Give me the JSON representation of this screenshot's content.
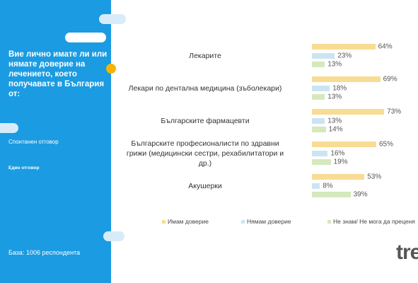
{
  "panel": {
    "question": "Вие лично имате ли или нямате доверие на лечението, което получавате в България от:",
    "notes": [
      "Спонтанен отговор",
      "Един отговор"
    ],
    "base": "База: 1006 респондента"
  },
  "chart_data": {
    "type": "bar",
    "categories": [
      "Лекарите",
      "Лекари по дентална медицина (зъболекари)",
      "Българските фармацевти",
      "Българските професионалисти по здравни грижи (медицински сестри, рехабилитатори и др.)",
      "Акушерки"
    ],
    "series": [
      {
        "name": "Имам доверие",
        "color": "#f8dc93",
        "values": [
          64,
          69,
          73,
          65,
          53
        ],
        "value_labels": [
          "64%",
          "69%",
          "73%",
          "65%",
          "53%"
        ]
      },
      {
        "name": "Нямам доверие",
        "color": "#cbe4f2",
        "values": [
          23,
          18,
          13,
          16,
          8
        ],
        "value_labels": [
          "23%",
          "18%",
          "13%",
          "16%",
          "8%"
        ]
      },
      {
        "name": "Не знам/ Не мога да преценя",
        "color": "#d5e9bd",
        "values": [
          13,
          13,
          14,
          19,
          39
        ],
        "value_labels": [
          "13%",
          "13%",
          "14%",
          "19%",
          "39%"
        ]
      }
    ]
  },
  "logo": "tre"
}
